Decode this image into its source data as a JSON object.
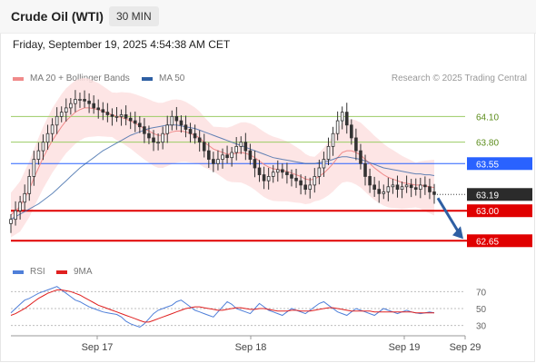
{
  "header": {
    "title": "Crude Oil (WTI)",
    "timeframe": "30 MIN",
    "datetime": "Friday, September 19, 2025 4:54:38 AM CET"
  },
  "legend": {
    "ma20_label": "MA 20 + Bollinger Bands",
    "ma50_label": "MA 50",
    "credit": "Research © 2025 Trading Central",
    "rsi_label": "RSI",
    "rsi_ma_label": "9MA"
  },
  "colors": {
    "ma20": "#f08a8a",
    "ma50": "#2e5fa3",
    "bollinger_fill": "#fde0e0",
    "green_level": "#9ccc65",
    "blue_level": "#2962ff",
    "red_level": "#e00000",
    "candle": "#333333",
    "rsi": "#4f7fd9",
    "rsi_ma": "#e02020"
  },
  "chart_data": [
    {
      "type": "candlestick",
      "ylim": [
        62.6,
        64.4
      ],
      "x_ticks": [
        "Sep 17",
        "Sep 18",
        "Sep 19",
        "Sep 29"
      ],
      "series": [
        {
          "name": "MA 20 + Bollinger Bands"
        },
        {
          "name": "MA 50"
        }
      ],
      "levels": [
        {
          "value": 64.1,
          "label": "64.10",
          "kind": "resistance"
        },
        {
          "value": 63.8,
          "label": "63.80",
          "kind": "resistance"
        },
        {
          "value": 63.55,
          "label": "63.55",
          "kind": "pivot"
        },
        {
          "value": 63.19,
          "label": "63.19",
          "kind": "last_price"
        },
        {
          "value": 63.0,
          "label": "63.00",
          "kind": "support"
        },
        {
          "value": 62.65,
          "label": "62.65",
          "kind": "support"
        }
      ],
      "closes": [
        62.9,
        63.0,
        63.1,
        63.2,
        63.4,
        63.6,
        63.7,
        63.8,
        63.9,
        64.0,
        64.1,
        64.15,
        64.2,
        64.25,
        64.3,
        64.3,
        64.28,
        64.25,
        64.2,
        64.18,
        64.15,
        64.12,
        64.1,
        64.1,
        64.12,
        64.08,
        64.05,
        64.02,
        63.98,
        63.9,
        63.85,
        63.8,
        63.8,
        63.9,
        64.0,
        64.1,
        64.05,
        64.0,
        63.95,
        63.9,
        63.85,
        63.8,
        63.7,
        63.6,
        63.55,
        63.6,
        63.65,
        63.62,
        63.68,
        63.75,
        63.8,
        63.7,
        63.6,
        63.5,
        63.42,
        63.35,
        63.4,
        63.45,
        63.48,
        63.45,
        63.42,
        63.38,
        63.35,
        63.3,
        63.25,
        63.3,
        63.4,
        63.5,
        63.6,
        63.75,
        63.9,
        64.05,
        64.15,
        64.0,
        63.85,
        63.7,
        63.55,
        63.4,
        63.3,
        63.25,
        63.2,
        63.22,
        63.28,
        63.3,
        63.25,
        63.28,
        63.3,
        63.27,
        63.25,
        63.3,
        63.28,
        63.22,
        63.19
      ],
      "ma20": [
        62.95,
        63.0,
        63.05,
        63.15,
        63.25,
        63.38,
        63.5,
        63.62,
        63.72,
        63.82,
        63.9,
        63.98,
        64.05,
        64.1,
        64.15,
        64.18,
        64.2,
        64.2,
        64.19,
        64.18,
        64.16,
        64.14,
        64.12,
        64.1,
        64.09,
        64.07,
        64.05,
        64.02,
        63.99,
        63.96,
        63.93,
        63.9,
        63.88,
        63.88,
        63.9,
        63.92,
        63.93,
        63.93,
        63.92,
        63.9,
        63.88,
        63.85,
        63.8,
        63.76,
        63.72,
        63.7,
        63.68,
        63.66,
        63.66,
        63.67,
        63.68,
        63.67,
        63.65,
        63.62,
        63.58,
        63.54,
        63.51,
        63.49,
        63.48,
        63.47,
        63.46,
        63.44,
        63.42,
        63.4,
        63.37,
        63.36,
        63.37,
        63.4,
        63.44,
        63.49,
        63.55,
        63.62,
        63.68,
        63.7,
        63.7,
        63.68,
        63.65,
        63.6,
        63.55,
        63.5,
        63.46,
        63.42,
        63.39,
        63.37,
        63.35,
        63.33,
        63.32,
        63.31,
        63.3,
        63.3,
        63.29,
        63.28,
        63.27
      ],
      "ma50": [
        62.9,
        62.93,
        62.96,
        62.99,
        63.02,
        63.05,
        63.08,
        63.12,
        63.16,
        63.2,
        63.25,
        63.3,
        63.35,
        63.4,
        63.45,
        63.5,
        63.54,
        63.58,
        63.62,
        63.66,
        63.7,
        63.73,
        63.76,
        63.79,
        63.82,
        63.85,
        63.88,
        63.9,
        63.92,
        63.94,
        63.96,
        63.97,
        63.98,
        63.99,
        64.0,
        64.0,
        64.0,
        63.99,
        63.98,
        63.97,
        63.96,
        63.94,
        63.92,
        63.9,
        63.88,
        63.86,
        63.84,
        63.82,
        63.8,
        63.78,
        63.76,
        63.74,
        63.72,
        63.7,
        63.68,
        63.66,
        63.64,
        63.62,
        63.61,
        63.6,
        63.59,
        63.58,
        63.57,
        63.56,
        63.55,
        63.55,
        63.55,
        63.56,
        63.57,
        63.58,
        63.6,
        63.62,
        63.63,
        63.63,
        63.62,
        63.61,
        63.6,
        63.58,
        63.56,
        63.54,
        63.52,
        63.5,
        63.49,
        63.48,
        63.47,
        63.46,
        63.45,
        63.44,
        63.43,
        63.43,
        63.42,
        63.42,
        63.41
      ],
      "forecast": {
        "from": 63.19,
        "to": 62.65
      }
    },
    {
      "type": "line",
      "ylim": [
        20,
        80
      ],
      "y_ticks": [
        70,
        50,
        30
      ],
      "series": [
        {
          "name": "RSI",
          "values": [
            45,
            50,
            55,
            60,
            62,
            65,
            68,
            70,
            72,
            74,
            76,
            72,
            68,
            64,
            60,
            58,
            55,
            52,
            50,
            48,
            46,
            45,
            44,
            43,
            40,
            35,
            32,
            30,
            28,
            32,
            38,
            44,
            48,
            50,
            52,
            54,
            58,
            60,
            56,
            52,
            48,
            46,
            44,
            42,
            40,
            46,
            52,
            58,
            55,
            50,
            48,
            46,
            44,
            50,
            56,
            52,
            48,
            46,
            44,
            42,
            46,
            50,
            48,
            46,
            44,
            48,
            52,
            56,
            58,
            54,
            50,
            46,
            44,
            42,
            46,
            50,
            48,
            46,
            44,
            42,
            46,
            50,
            48,
            46,
            44,
            46,
            48,
            46,
            45,
            44,
            45,
            46,
            45
          ]
        },
        {
          "name": "9MA",
          "values": [
            42,
            44,
            47,
            50,
            54,
            58,
            62,
            65,
            68,
            70,
            72,
            72,
            71,
            70,
            68,
            66,
            63,
            60,
            57,
            54,
            52,
            50,
            48,
            46,
            44,
            42,
            40,
            38,
            36,
            34,
            34,
            36,
            38,
            40,
            42,
            44,
            46,
            48,
            50,
            51,
            52,
            52,
            51,
            50,
            49,
            48,
            48,
            49,
            50,
            51,
            51,
            50,
            49,
            49,
            50,
            50,
            49,
            48,
            47,
            47,
            47,
            48,
            48,
            47,
            47,
            47,
            48,
            49,
            50,
            51,
            51,
            50,
            49,
            48,
            47,
            47,
            47,
            47,
            47,
            46,
            46,
            46,
            46,
            46,
            46,
            46,
            46,
            46,
            45,
            45,
            45,
            45,
            45
          ]
        }
      ]
    }
  ]
}
